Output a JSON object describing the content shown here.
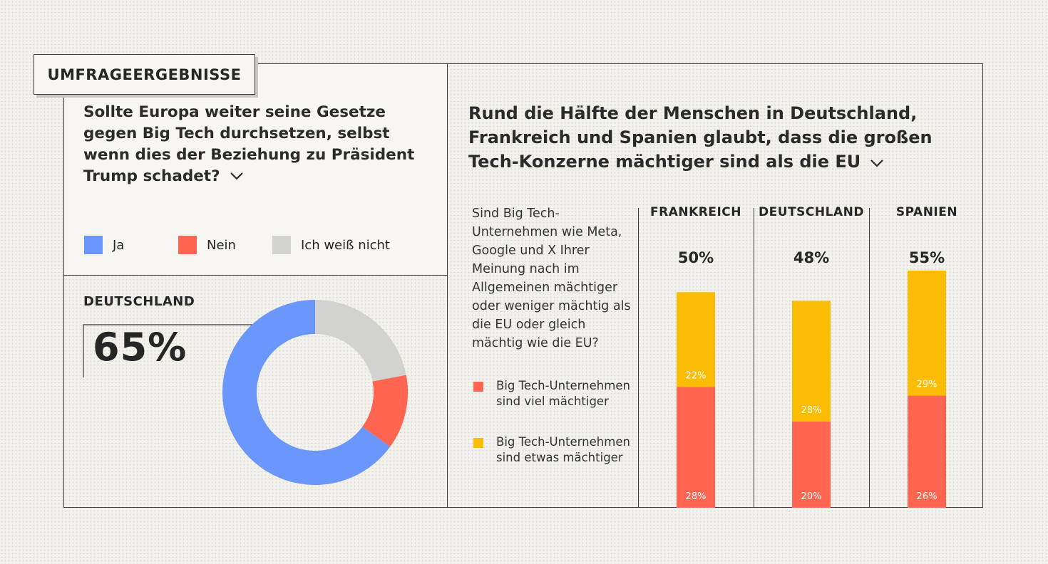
{
  "tag": "UMFRAGEERGEBNISSE",
  "question": "Sollte Europa weiter seine Gesetze gegen Big Tech durchsetzen, selbst wenn dies der Beziehung zu Präsident Trump schadet?",
  "legend": [
    {
      "label": "Ja",
      "color": "#6b96fb"
    },
    {
      "label": "Nein",
      "color": "#ff6550"
    },
    {
      "label": "Ich weiß nicht",
      "color": "#d2d2d0"
    }
  ],
  "donut_section": {
    "country": "DEUTSCHLAND",
    "value_label": "65%"
  },
  "headline": "Rund die Hälfte der Menschen in Deutschland, Frankreich und Spanien glaubt, dass die großen Tech-Konzerne mächtiger sind als die EU",
  "sub_question": "Sind Big Tech-Unternehmen wie Meta, Google und X Ihrer Meinung nach im Allgemeinen mächtiger oder weniger mächtig als die EU oder gleich mächtig wie die EU?",
  "bar_legend": [
    {
      "label": "Big Tech-Unternehmen sind viel mächtiger",
      "color": "#ff6550"
    },
    {
      "label": "Big Tech-Unternehmen sind etwas mächtiger",
      "color": "#fbbc04"
    }
  ],
  "chart_data": [
    {
      "type": "pie",
      "title": "DEUTSCHLAND",
      "categories": [
        "Ja",
        "Nein",
        "Ich weiß nicht"
      ],
      "values": [
        65,
        13,
        22
      ],
      "colors": [
        "#6b96fb",
        "#ff6550",
        "#d2d2d0"
      ]
    },
    {
      "type": "bar",
      "stacked": true,
      "categories": [
        "FRANKREICH",
        "DEUTSCHLAND",
        "SPANIEN"
      ],
      "totals": [
        "50%",
        "48%",
        "55%"
      ],
      "series": [
        {
          "name": "Big Tech-Unternehmen sind viel mächtiger",
          "values": [
            28,
            20,
            26
          ],
          "labels": [
            "28%",
            "20%",
            "26%"
          ],
          "color": "#ff6550"
        },
        {
          "name": "Big Tech-Unternehmen sind etwas mächtiger",
          "values": [
            22,
            28,
            29
          ],
          "labels": [
            "22%",
            "28%",
            "29%"
          ],
          "color": "#fbbc04"
        }
      ]
    }
  ]
}
